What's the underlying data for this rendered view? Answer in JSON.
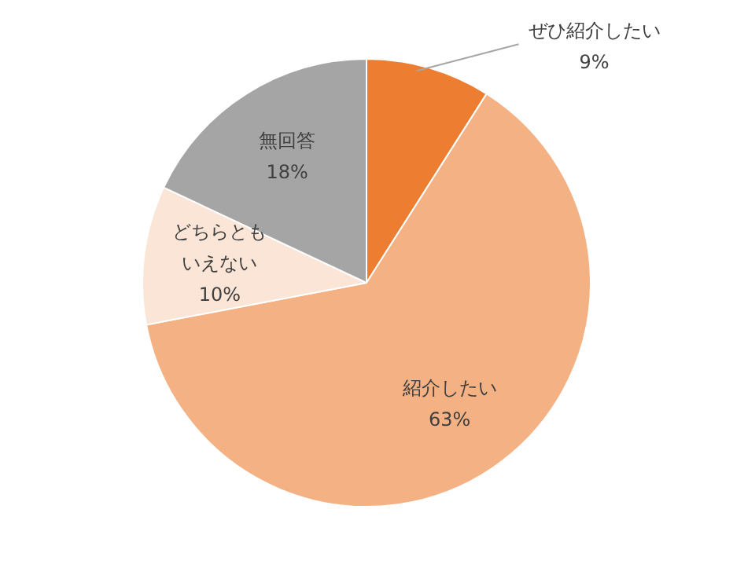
{
  "chart_data": {
    "type": "pie",
    "categories": [
      "ぜひ紹介したい",
      "紹介したい",
      "どちらともいえない",
      "無回答"
    ],
    "values": [
      9,
      63,
      10,
      18
    ],
    "colors": [
      "#ed7d31",
      "#f4b183",
      "#fbe5d6",
      "#a5a5a5"
    ],
    "value_labels": [
      "9%",
      "63%",
      "10%",
      "18%"
    ],
    "legend": false
  }
}
